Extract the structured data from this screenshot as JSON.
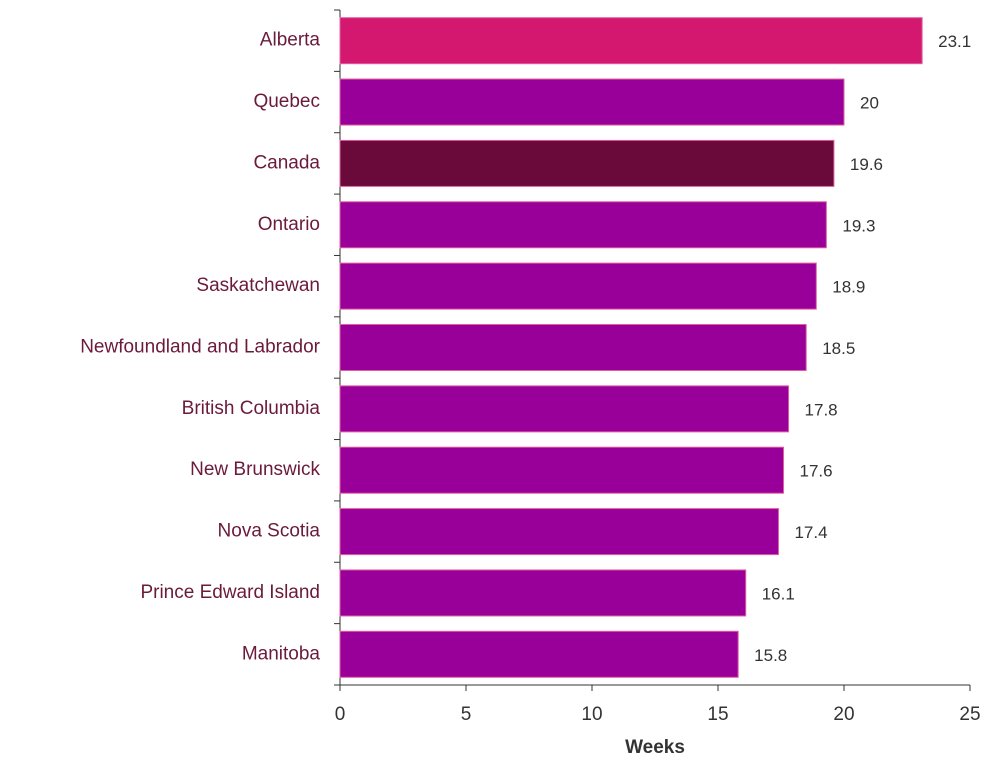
{
  "chart_data": {
    "type": "bar",
    "orientation": "horizontal",
    "categories": [
      "Alberta",
      "Quebec",
      "Canada",
      "Ontario",
      "Saskatchewan",
      "Newfoundland and Labrador",
      "British Columbia",
      "New Brunswick",
      "Nova Scotia",
      "Prince Edward Island",
      "Manitoba"
    ],
    "values": [
      23.1,
      20,
      19.6,
      19.3,
      18.9,
      18.5,
      17.8,
      17.6,
      17.4,
      16.1,
      15.8
    ],
    "colors": [
      "#d4186f",
      "#990099",
      "#6a0a3a",
      "#990099",
      "#990099",
      "#990099",
      "#990099",
      "#990099",
      "#990099",
      "#990099",
      "#990099"
    ],
    "xlabel": "Weeks",
    "xlim": [
      0,
      25
    ],
    "xticks": [
      0,
      5,
      10,
      15,
      20,
      25
    ],
    "grid": false
  }
}
